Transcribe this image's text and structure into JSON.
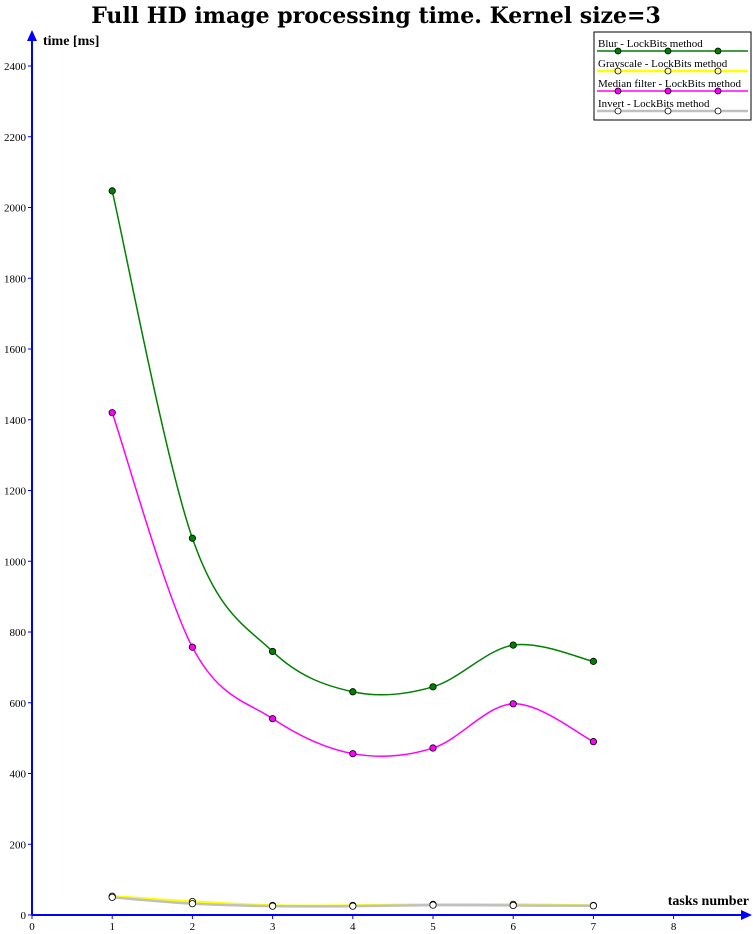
{
  "chart_data": {
    "type": "line",
    "title": "Full HD image processing time. Kernel size=3",
    "xlabel": "tasks number",
    "ylabel": "time [ms]",
    "xlim": [
      0,
      9
    ],
    "ylim": [
      0,
      2500
    ],
    "x_ticks": [
      "0",
      "1",
      "2",
      "3",
      "4",
      "5",
      "6",
      "7",
      "8"
    ],
    "y_ticks": [
      "0",
      "200",
      "400",
      "600",
      "800",
      "1000",
      "1200",
      "1400",
      "1600",
      "1800",
      "2000",
      "2200",
      "2400"
    ],
    "grid": false,
    "legend_position": "top-right",
    "x": [
      1,
      2,
      3,
      4,
      5,
      6,
      7
    ],
    "series": [
      {
        "name": "Blur - LockBits method",
        "color": "#008000",
        "values": [
          2047,
          1065,
          745,
          631,
          645,
          763,
          717
        ]
      },
      {
        "name": "Grayscale - LockBits method",
        "color": "#ffff00",
        "values": [
          53,
          38,
          27,
          27,
          30,
          30,
          27
        ]
      },
      {
        "name": "Median filter - LockBits method",
        "color": "#ff00ff",
        "values": [
          1420,
          757,
          555,
          456,
          472,
          597,
          490
        ]
      },
      {
        "name": "Invert - LockBits method",
        "color": "#c0c0c0",
        "values": [
          50,
          32,
          25,
          25,
          28,
          27,
          26
        ]
      }
    ]
  }
}
